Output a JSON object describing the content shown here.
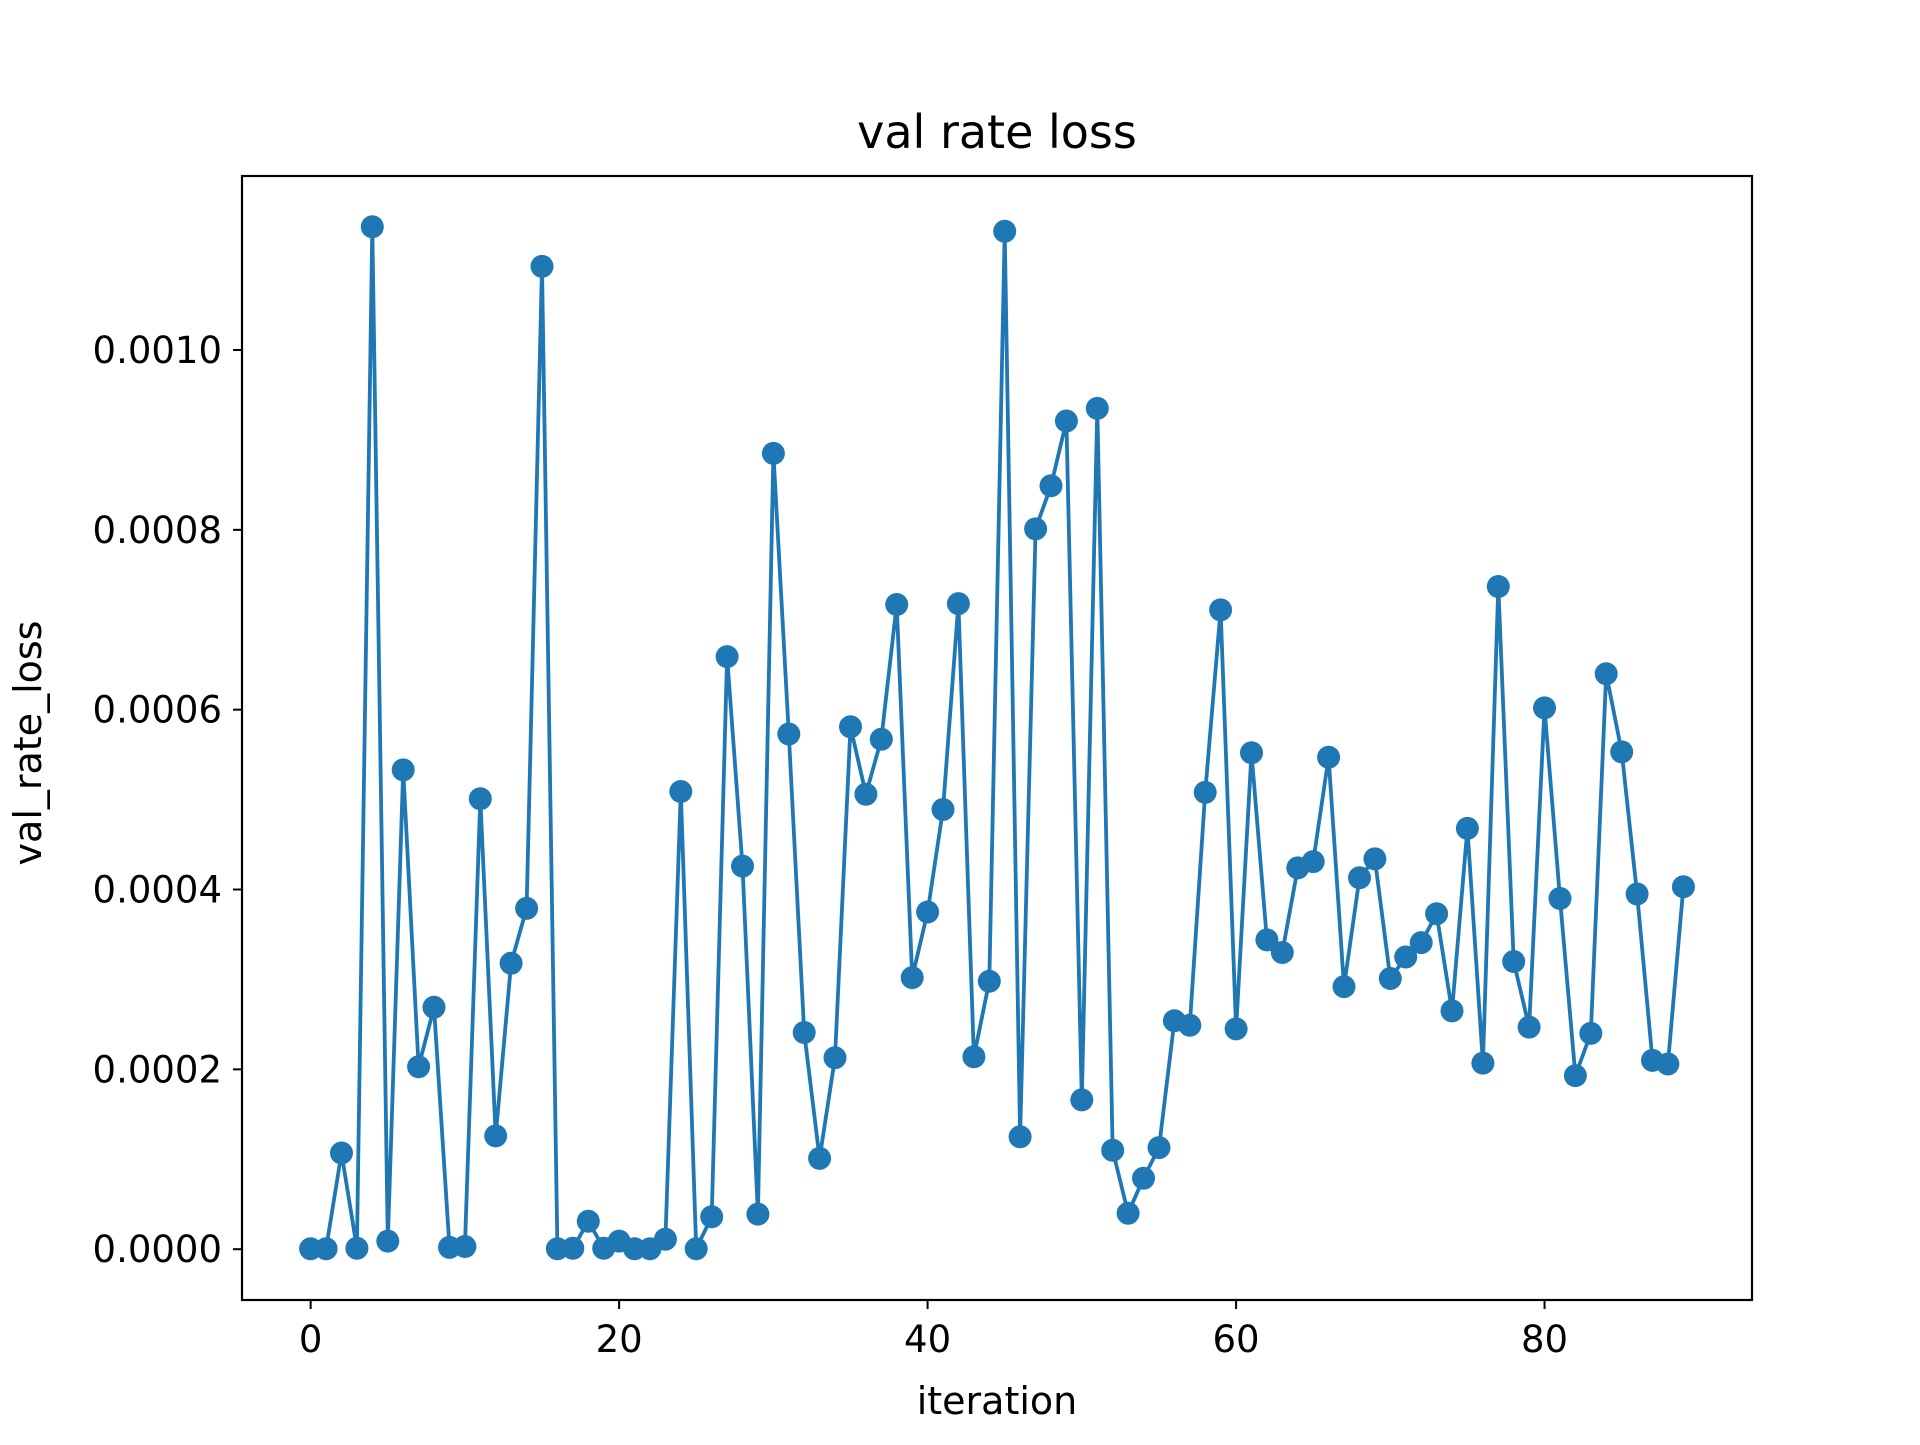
{
  "chart_data": {
    "type": "line",
    "title": "val rate loss",
    "xlabel": "iteration",
    "ylabel": "val_rate_loss",
    "xlim": [
      -4.45,
      93.45
    ],
    "ylim": [
      -5.65e-05,
      0.0011935
    ],
    "xticks": [
      0,
      20,
      40,
      60,
      80
    ],
    "xtick_labels": [
      "0",
      "20",
      "40",
      "60",
      "80"
    ],
    "yticks": [
      0,
      0.0002,
      0.0004,
      0.0006,
      0.0008,
      0.001
    ],
    "ytick_labels": [
      "0.0000",
      "0.0002",
      "0.0004",
      "0.0006",
      "0.0008",
      "0.0010"
    ],
    "grid": false,
    "color": "#1f77b4",
    "marker": "circle",
    "x": [
      0,
      1,
      2,
      3,
      4,
      5,
      6,
      7,
      8,
      9,
      10,
      11,
      12,
      13,
      14,
      15,
      16,
      17,
      18,
      19,
      20,
      21,
      22,
      23,
      24,
      25,
      26,
      27,
      28,
      29,
      30,
      31,
      32,
      33,
      34,
      35,
      36,
      37,
      38,
      39,
      40,
      41,
      42,
      43,
      44,
      45,
      46,
      47,
      48,
      49,
      50,
      51,
      52,
      53,
      54,
      55,
      56,
      57,
      58,
      59,
      60,
      61,
      62,
      63,
      64,
      65,
      66,
      67,
      68,
      69,
      70,
      71,
      72,
      73,
      74,
      75,
      76,
      77,
      78,
      79,
      80,
      81,
      82,
      83,
      84,
      85,
      86,
      87,
      88,
      89
    ],
    "y": [
      5e-07,
      5e-07,
      0.000107,
      1e-06,
      0.001137,
      9e-06,
      0.000533,
      0.000203,
      0.000269,
      2e-06,
      3e-06,
      0.000501,
      0.000126,
      0.000318,
      0.000379,
      0.001093,
      5e-07,
      1e-06,
      3.1e-05,
      1e-06,
      9e-06,
      5e-07,
      5e-07,
      1.1e-05,
      0.000509,
      5e-07,
      3.6e-05,
      0.000659,
      0.000426,
      3.9e-05,
      0.000885,
      0.000573,
      0.000241,
      0.000101,
      0.000213,
      0.000581,
      0.000506,
      0.000567,
      0.000717,
      0.000302,
      0.000375,
      0.000489,
      0.000718,
      0.000214,
      0.000298,
      0.001132,
      0.000125,
      0.000801,
      0.000849,
      0.000921,
      0.000166,
      0.000935,
      0.00011,
      4e-05,
      7.9e-05,
      0.000113,
      0.000254,
      0.000249,
      0.000508,
      0.000711,
      0.000245,
      0.000552,
      0.000344,
      0.00033,
      0.000424,
      0.000431,
      0.000547,
      0.000292,
      0.000413,
      0.000434,
      0.000301,
      0.000325,
      0.000341,
      0.000373,
      0.000265,
      0.000468,
      0.000207,
      0.000737,
      0.00032,
      0.000247,
      0.000602,
      0.00039,
      0.000193,
      0.00024,
      0.00064,
      0.000553,
      0.000395,
      0.00021,
      0.000206,
      0.000403
    ]
  }
}
